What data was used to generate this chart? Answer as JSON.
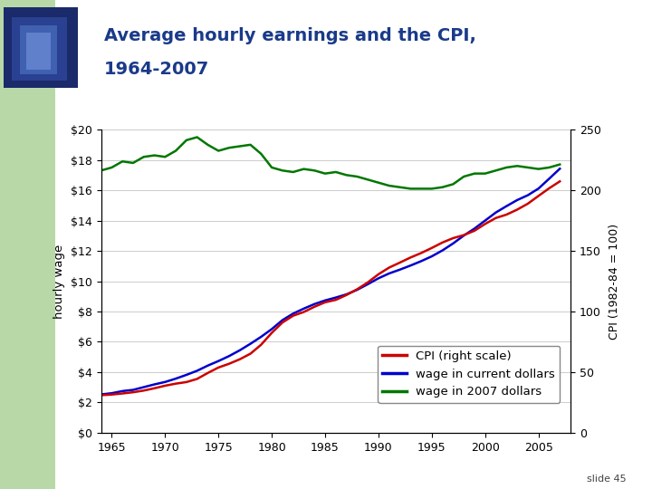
{
  "title_line1": "Average hourly earnings and the CPI,",
  "title_line2": "1964-2007",
  "title_color": "#1a3a8a",
  "background_color": "#b8d8a8",
  "plot_bg_color": "#ffffff",
  "years": [
    1964,
    1965,
    1966,
    1967,
    1968,
    1969,
    1970,
    1971,
    1972,
    1973,
    1974,
    1975,
    1976,
    1977,
    1978,
    1979,
    1980,
    1981,
    1982,
    1983,
    1984,
    1985,
    1986,
    1987,
    1988,
    1989,
    1990,
    1991,
    1992,
    1993,
    1994,
    1995,
    1996,
    1997,
    1998,
    1999,
    2000,
    2001,
    2002,
    2003,
    2004,
    2005,
    2006,
    2007
  ],
  "wage_nominal": [
    2.53,
    2.61,
    2.75,
    2.83,
    3.01,
    3.19,
    3.35,
    3.57,
    3.82,
    4.09,
    4.43,
    4.73,
    5.06,
    5.44,
    5.87,
    6.33,
    6.84,
    7.43,
    7.86,
    8.19,
    8.49,
    8.73,
    8.92,
    9.13,
    9.43,
    9.8,
    10.19,
    10.51,
    10.76,
    11.03,
    11.32,
    11.64,
    12.03,
    12.49,
    13.01,
    13.47,
    14.0,
    14.53,
    14.95,
    15.35,
    15.67,
    16.11,
    16.76,
    17.42
  ],
  "cpi": [
    31.0,
    31.5,
    32.4,
    33.4,
    34.8,
    36.7,
    38.8,
    40.5,
    41.8,
    44.4,
    49.3,
    53.8,
    56.9,
    60.6,
    65.2,
    72.6,
    82.4,
    90.9,
    96.5,
    99.6,
    103.9,
    107.6,
    109.6,
    113.6,
    118.3,
    124.0,
    130.7,
    136.2,
    140.3,
    144.5,
    148.2,
    152.4,
    156.9,
    160.5,
    163.0,
    166.6,
    172.2,
    177.1,
    179.9,
    184.0,
    188.9,
    195.3,
    201.6,
    207.3
  ],
  "wage_2007dollars": [
    17.3,
    17.5,
    17.9,
    17.8,
    18.2,
    18.3,
    18.2,
    18.6,
    19.3,
    19.5,
    19.0,
    18.6,
    18.8,
    18.9,
    19.0,
    18.4,
    17.5,
    17.3,
    17.2,
    17.4,
    17.3,
    17.1,
    17.2,
    17.0,
    16.9,
    16.7,
    16.5,
    16.3,
    16.2,
    16.1,
    16.1,
    16.1,
    16.2,
    16.4,
    16.9,
    17.1,
    17.1,
    17.3,
    17.5,
    17.6,
    17.5,
    17.4,
    17.5,
    17.7
  ],
  "color_cpi": "#cc0000",
  "color_nominal": "#0000cc",
  "color_real": "#007700",
  "ylim_left": [
    0,
    20
  ],
  "ylim_right": [
    0,
    250
  ],
  "yticks_left": [
    0,
    2,
    4,
    6,
    8,
    10,
    12,
    14,
    16,
    18,
    20
  ],
  "ytick_labels_left": [
    "$0",
    "$2",
    "$4",
    "$6",
    "$8",
    "$10",
    "$12",
    "$14",
    "$16",
    "$18",
    "$20"
  ],
  "yticks_right": [
    0,
    50,
    100,
    150,
    200,
    250
  ],
  "xticks": [
    1965,
    1970,
    1975,
    1980,
    1985,
    1990,
    1995,
    2000,
    2005
  ],
  "legend_labels": [
    "CPI (right scale)",
    "wage in current dollars",
    "wage in 2007 dollars"
  ],
  "legend_colors": [
    "#cc0000",
    "#0000cc",
    "#007700"
  ],
  "slide_text": "slide 45",
  "line_width": 1.8
}
